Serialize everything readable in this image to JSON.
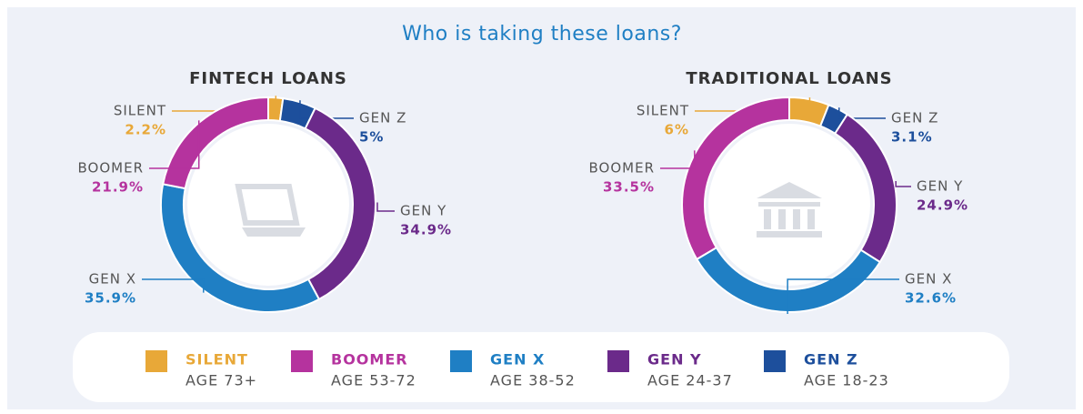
{
  "title": "Who is taking these loans?",
  "chart_data": [
    {
      "type": "donut",
      "title": "FINTECH  LOANS",
      "categories": [
        "SILENT",
        "GEN Z",
        "GEN Y",
        "GEN X",
        "BOOMER"
      ],
      "values": [
        2.2,
        5,
        34.9,
        35.9,
        21.9
      ],
      "value_labels": [
        "2.2%",
        "5%",
        "34.9%",
        "35.9%",
        "21.9%"
      ],
      "colors": [
        "#e8a838",
        "#1d4f9c",
        "#6b2a8a",
        "#1f7fc4",
        "#b5339e"
      ]
    },
    {
      "type": "donut",
      "title": "TRADITIONAL LOANS",
      "categories": [
        "SILENT",
        "GEN Z",
        "GEN Y",
        "GEN X",
        "BOOMER"
      ],
      "values": [
        6,
        3.1,
        24.9,
        32.6,
        33.5
      ],
      "value_labels": [
        "6%",
        "3.1%",
        "24.9%",
        "32.6%",
        "33.5%"
      ],
      "colors": [
        "#e8a838",
        "#1d4f9c",
        "#6b2a8a",
        "#1f7fc4",
        "#b5339e"
      ]
    }
  ],
  "legend": [
    {
      "name": "SILENT",
      "age": "AGE 73+",
      "color": "#e8a838"
    },
    {
      "name": "BOOMER",
      "age": "AGE 53-72",
      "color": "#b5339e"
    },
    {
      "name": "GEN X",
      "age": "AGE 38-52",
      "color": "#1f7fc4"
    },
    {
      "name": "GEN Y",
      "age": "AGE 24-37",
      "color": "#6b2a8a"
    },
    {
      "name": "GEN Z",
      "age": "AGE 18-23",
      "color": "#1d4f9c"
    }
  ]
}
